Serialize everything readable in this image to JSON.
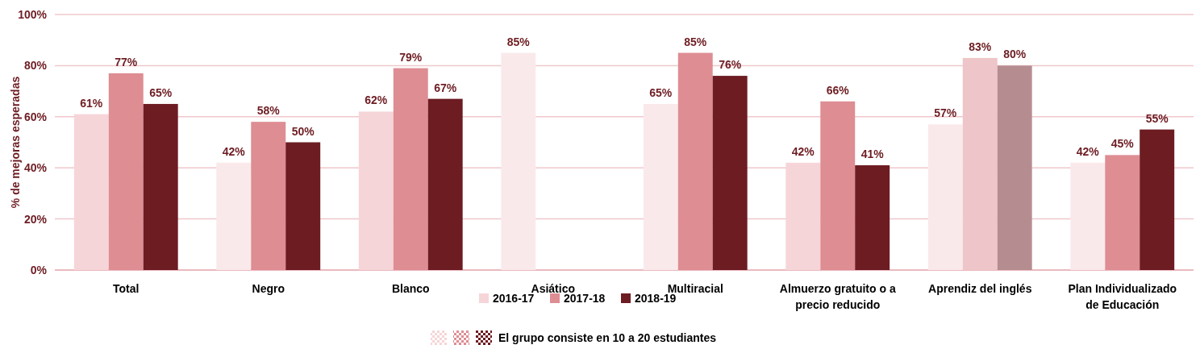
{
  "chart_data": {
    "type": "bar",
    "ylabel": "% de mejoras esperadas",
    "categories": [
      "Total",
      "Negro",
      "Blanco",
      "Asiático",
      "Multiracial",
      "Almuerzo gratuito o a\nprecio reducido",
      "Aprendiz del inglés",
      "Plan Individualizado\nde Educación"
    ],
    "series": [
      {
        "name": "2016-17",
        "color": "#f6d5d8",
        "colors": [
          "#f6d5d8",
          "#fae9eb",
          "#f6d5d8",
          "#fae9eb",
          "#fae9eb",
          "#f6d5d8",
          "#fae9eb",
          "#fae9eb"
        ],
        "values": [
          61,
          42,
          62,
          85,
          65,
          42,
          57,
          42
        ],
        "value_labels": [
          "61%",
          "42%",
          "62%",
          "85%",
          "65%",
          "42%",
          "57%",
          "42%"
        ]
      },
      {
        "name": "2017-18",
        "color": "#de8d93",
        "colors": [
          "#de8d93",
          "#de8d93",
          "#de8d93",
          null,
          "#de8d93",
          "#de8d93",
          "#eec5c8",
          "#de8d93"
        ],
        "values": [
          77,
          58,
          79,
          null,
          85,
          66,
          83,
          45
        ],
        "value_labels": [
          "77%",
          "58%",
          "79%",
          null,
          "85%",
          "66%",
          "83%",
          "45%"
        ]
      },
      {
        "name": "2018-19",
        "color": "#6d1c22",
        "colors": [
          "#6d1c22",
          "#6d1c22",
          "#6d1c22",
          null,
          "#6d1c22",
          "#6d1c22",
          "#b58d90",
          "#6d1c22"
        ],
        "values": [
          65,
          50,
          67,
          null,
          76,
          41,
          80,
          55
        ],
        "value_labels": [
          "65%",
          "50%",
          "67%",
          null,
          "76%",
          "41%",
          "80%",
          "55%"
        ]
      }
    ],
    "ylim": [
      0,
      100
    ],
    "yticks": [
      {
        "value": 0,
        "label": "0%"
      },
      {
        "value": 20,
        "label": "20%"
      },
      {
        "value": 40,
        "label": "40%"
      },
      {
        "value": 60,
        "label": "60%"
      },
      {
        "value": 80,
        "label": "80%"
      },
      {
        "value": 100,
        "label": "100%"
      }
    ],
    "grid": "y",
    "legend": "bottom",
    "annotations": [
      "El grupo consiste en 10 a 20 estudiantes"
    ]
  }
}
